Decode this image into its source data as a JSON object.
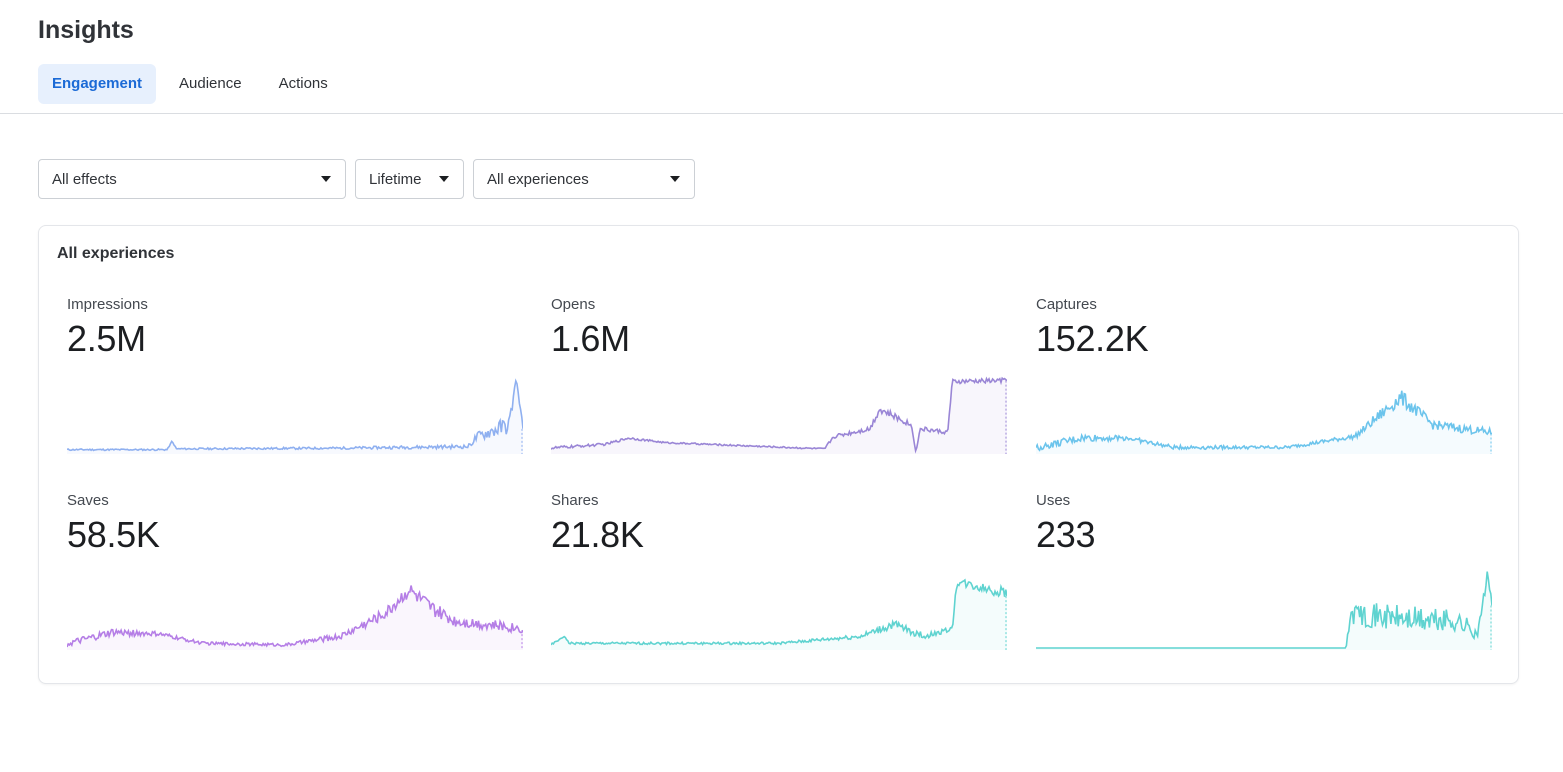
{
  "header": {
    "title": "Insights"
  },
  "tabs": [
    {
      "label": "Engagement",
      "active": true
    },
    {
      "label": "Audience",
      "active": false
    },
    {
      "label": "Actions",
      "active": false
    }
  ],
  "filters": {
    "effects": "All effects",
    "period": "Lifetime",
    "experiences": "All experiences"
  },
  "card": {
    "title": "All experiences",
    "metrics": [
      {
        "label": "Impressions",
        "value": "2.5M",
        "color": "#8fb0f0",
        "icon": "sparkline"
      },
      {
        "label": "Opens",
        "value": "1.6M",
        "color": "#9a86d6",
        "icon": "sparkline"
      },
      {
        "label": "Captures",
        "value": "152.2K",
        "color": "#6cc4ec",
        "icon": "sparkline"
      },
      {
        "label": "Saves",
        "value": "58.5K",
        "color": "#b57ee6",
        "icon": "sparkline"
      },
      {
        "label": "Shares",
        "value": "21.8K",
        "color": "#5fd3d0",
        "icon": "sparkline"
      },
      {
        "label": "Uses",
        "value": "233",
        "color": "#5fd3d0",
        "icon": "sparkline"
      }
    ]
  },
  "icons": {
    "dropdown": "caret-down-icon"
  }
}
